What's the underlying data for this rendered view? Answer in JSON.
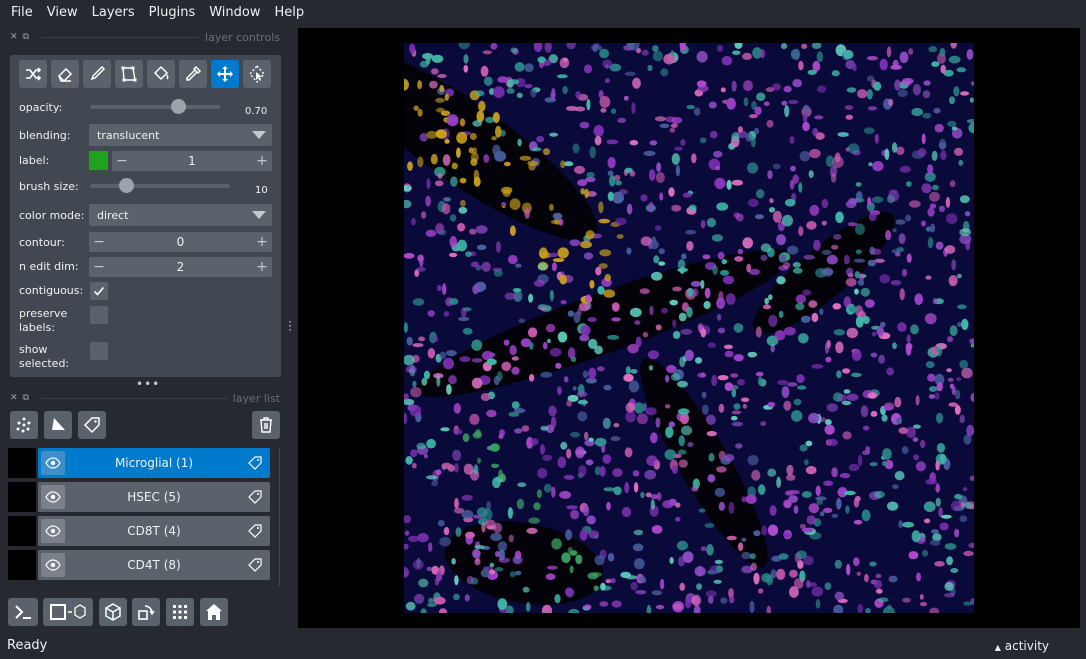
{
  "menubar": {
    "items": [
      "File",
      "View",
      "Layers",
      "Plugins",
      "Window",
      "Help"
    ]
  },
  "layer_controls": {
    "title": "layer controls",
    "tools": [
      "shuffle-colors",
      "erase",
      "paint",
      "polygon",
      "fill",
      "pick-label",
      "pan-zoom",
      "transform"
    ],
    "active_tool": "pan-zoom",
    "opacity": {
      "label": "opacity:",
      "value": "0.70",
      "fraction": 0.7
    },
    "blending": {
      "label": "blending:",
      "value": "translucent"
    },
    "label": {
      "label": "label:",
      "value": "1",
      "color": "#1fa31f"
    },
    "brush_size": {
      "label": "brush size:",
      "value": "10",
      "fraction": 0.27
    },
    "color_mode": {
      "label": "color mode:",
      "value": "direct"
    },
    "contour": {
      "label": "contour:",
      "value": "0"
    },
    "n_edit_dim": {
      "label": "n edit dim:",
      "value": "2"
    },
    "contiguous": {
      "label": "contiguous:",
      "checked": true
    },
    "preserve_labels": {
      "label_line1": "preserve",
      "label_line2": "labels:",
      "checked": false
    },
    "show_selected": {
      "label_line1": "show",
      "label_line2": "selected:",
      "checked": false
    }
  },
  "layer_list": {
    "title": "layer list",
    "layers": [
      {
        "name": "Microglial (1)",
        "selected": true
      },
      {
        "name": "HSEC (5)",
        "selected": false
      },
      {
        "name": "CD8T (4)",
        "selected": false
      },
      {
        "name": "CD4T (8)",
        "selected": false
      }
    ]
  },
  "status": {
    "text": "Ready",
    "activity": "activity",
    "activity_arrow": "▲"
  },
  "colors": {
    "accent": "#007acc",
    "background": "#262930",
    "panel": "#414851",
    "button": "#5a626c"
  }
}
